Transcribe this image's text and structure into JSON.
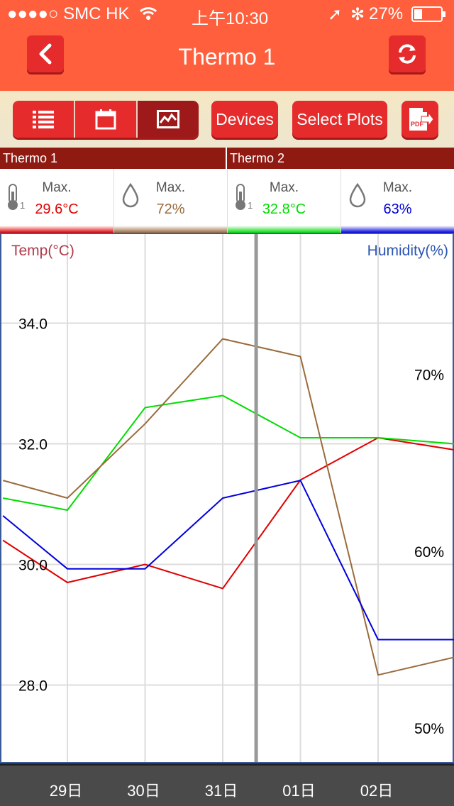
{
  "status": {
    "carrier": "●●●●○ SMC HK",
    "time": "上午10:30",
    "battery": "27%"
  },
  "title": "Thermo 1",
  "toolbar": {
    "devices_label": "Devices",
    "select_plots_label": "Select Plots",
    "pdf_label": "PDF"
  },
  "devices": [
    {
      "name": "Thermo 1",
      "temp_label": "Max.",
      "temp_value": "29.6°C",
      "temp_color": "#e00000",
      "hum_label": "Max.",
      "hum_value": "72%",
      "hum_color": "#9a6b3b"
    },
    {
      "name": "Thermo 2",
      "temp_label": "Max.",
      "temp_value": "32.8°C",
      "temp_color": "#00dd00",
      "hum_label": "Max.",
      "hum_value": "63%",
      "hum_color": "#0000dd"
    }
  ],
  "sensor_index": "1",
  "chart": {
    "left_title": "Temp(°C)",
    "right_title": "Humidity(%)",
    "y_ticks": [
      "34.0",
      "32.0",
      "30.0",
      "28.0"
    ],
    "y2_ticks": [
      "70%",
      "60%",
      "50%"
    ],
    "x_labels": [
      "29日",
      "30日",
      "31日",
      "01日",
      "02日"
    ]
  },
  "chart_data": {
    "type": "line",
    "categories": [
      "29日",
      "30日",
      "31日",
      "01日",
      "02日"
    ],
    "ylabel": "Temp(°C)",
    "y2label": "Humidity(%)",
    "ylim": [
      26.7,
      35.5
    ],
    "y2lim": [
      48,
      78
    ],
    "series": [
      {
        "axis": "left",
        "color": "#e00000",
        "x": [
          -0.83,
          0,
          1,
          2,
          3,
          4,
          4.98
        ],
        "y": [
          30.4,
          29.7,
          30.0,
          29.6,
          31.4,
          32.1,
          31.9
        ]
      },
      {
        "axis": "left",
        "color": "#00dd00",
        "x": [
          -0.83,
          0,
          1,
          2,
          3,
          4,
          4.98
        ],
        "y": [
          31.1,
          30.9,
          32.6,
          32.8,
          32.1,
          32.1,
          32.0
        ]
      },
      {
        "axis": "right",
        "color": "#9a6b3b",
        "x": [
          -0.83,
          0,
          1,
          2,
          3,
          4,
          4.98
        ],
        "y": [
          64.0,
          63.0,
          67.2,
          72.0,
          71.0,
          53.0,
          54.0
        ]
      },
      {
        "axis": "right",
        "color": "#0000dd",
        "x": [
          -0.83,
          0,
          1,
          2,
          3,
          4,
          4.98
        ],
        "y": [
          62.0,
          59.0,
          59.0,
          63.0,
          64.0,
          55.0,
          55.0
        ]
      }
    ],
    "grid": true,
    "cursor_x": 2.43
  }
}
